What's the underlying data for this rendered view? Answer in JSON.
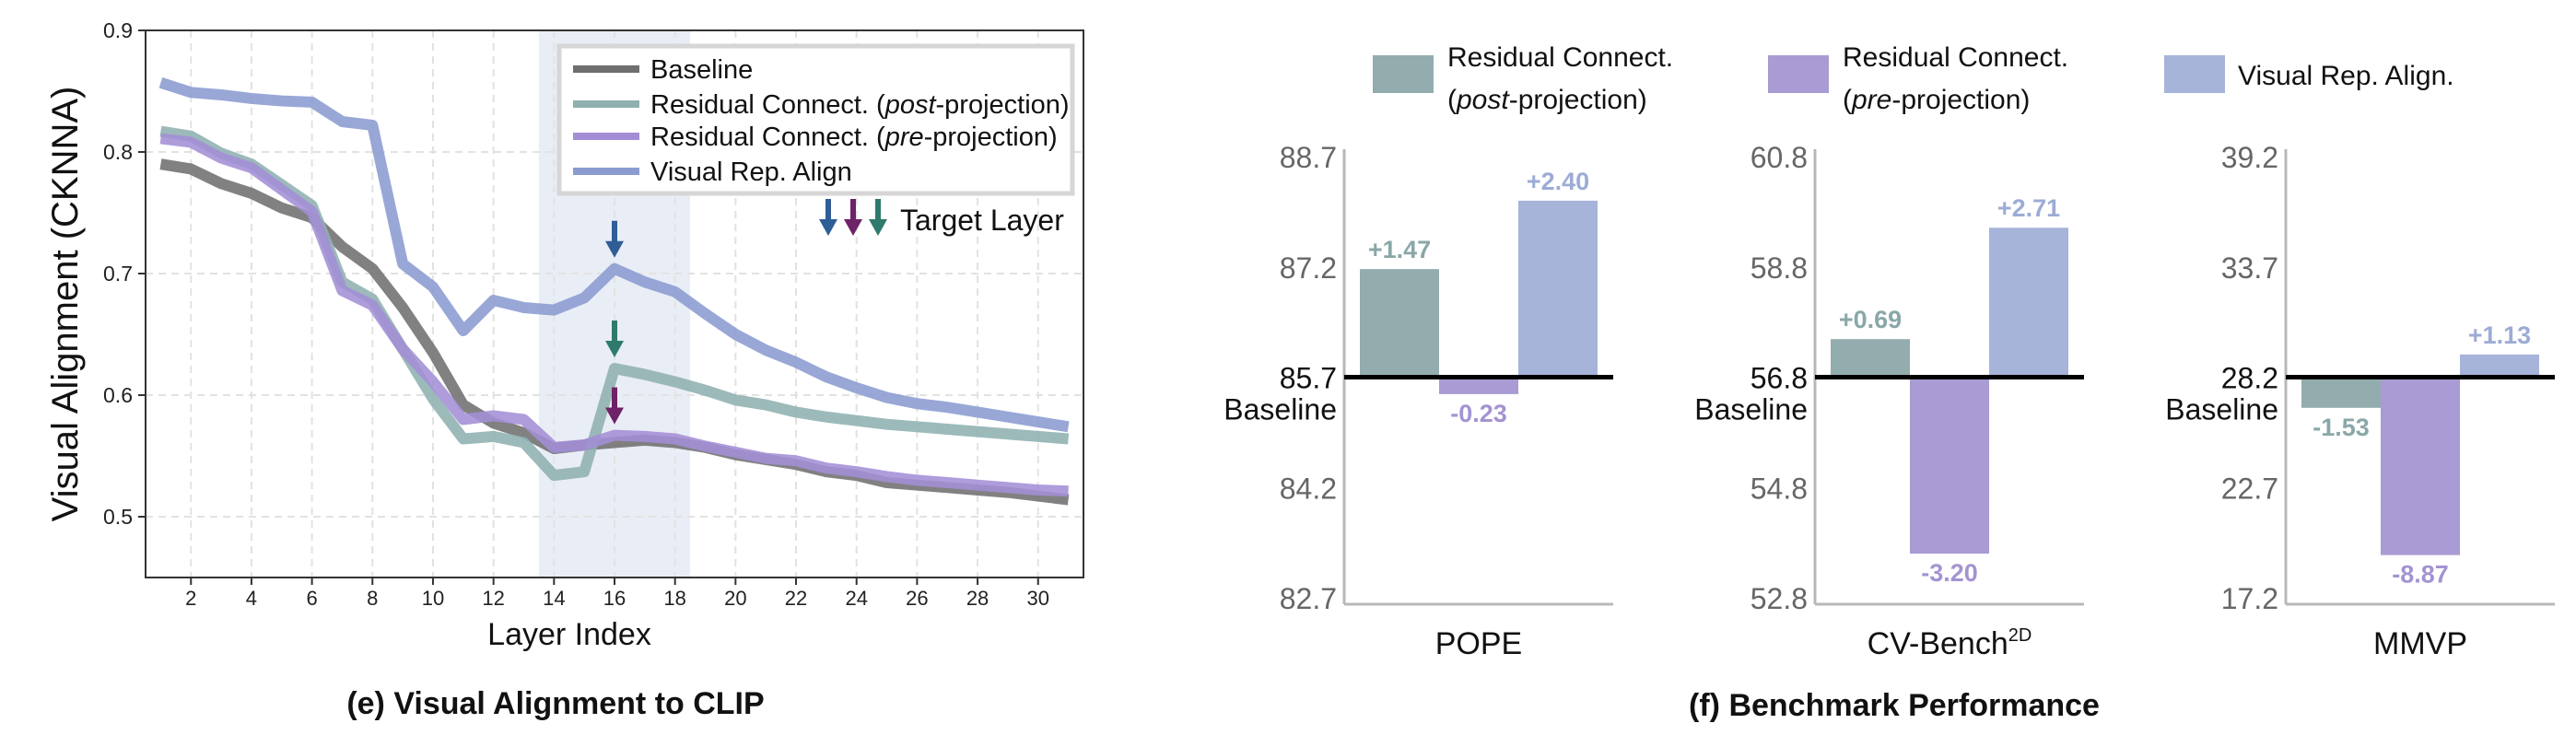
{
  "chart_data": [
    {
      "type": "line",
      "title": "(e) Visual Alignment to CLIP",
      "xlabel": "Layer Index",
      "ylabel": "Visual Alignment (CKNNA)",
      "xlim": [
        0.5,
        31.5
      ],
      "ylim": [
        0.45,
        0.9
      ],
      "xticks": [
        2,
        4,
        6,
        8,
        10,
        12,
        14,
        16,
        18,
        20,
        22,
        24,
        26,
        28,
        30
      ],
      "yticks": [
        0.5,
        0.6,
        0.7,
        0.8,
        0.9
      ],
      "ytick_labels": [
        "0.5",
        "0.6",
        "0.7",
        "0.8",
        "0.9"
      ],
      "grid": true,
      "legend_position": "top-right",
      "highlight_span": [
        13.5,
        18.5
      ],
      "x": [
        1,
        2,
        3,
        4,
        5,
        6,
        7,
        8,
        9,
        10,
        11,
        12,
        13,
        14,
        15,
        16,
        17,
        18,
        19,
        20,
        21,
        22,
        23,
        24,
        25,
        26,
        27,
        28,
        29,
        30,
        31
      ],
      "series": [
        {
          "key": "baseline",
          "name_parts": [
            "Baseline",
            "",
            ""
          ],
          "color": "#6f6f6f",
          "values": [
            0.79,
            0.786,
            0.774,
            0.766,
            0.754,
            0.746,
            0.722,
            0.704,
            0.672,
            0.635,
            0.592,
            0.577,
            0.569,
            0.556,
            0.559,
            0.561,
            0.563,
            0.561,
            0.557,
            0.551,
            0.547,
            0.543,
            0.537,
            0.534,
            0.528,
            0.526,
            0.524,
            0.522,
            0.52,
            0.517,
            0.514
          ]
        },
        {
          "key": "post",
          "name_parts": [
            "Residual Connect. (",
            "post",
            "-projection)"
          ],
          "color": "#8fb0b0",
          "values": [
            0.817,
            0.813,
            0.799,
            0.79,
            0.773,
            0.756,
            0.693,
            0.679,
            0.638,
            0.597,
            0.564,
            0.566,
            0.561,
            0.534,
            0.537,
            0.622,
            0.617,
            0.611,
            0.604,
            0.596,
            0.592,
            0.586,
            0.582,
            0.579,
            0.576,
            0.574,
            0.572,
            0.57,
            0.568,
            0.566,
            0.564
          ]
        },
        {
          "key": "pre",
          "name_parts": [
            "Residual Connect. (",
            "pre",
            "-projection)"
          ],
          "color": "#a38ed6",
          "values": [
            0.811,
            0.808,
            0.795,
            0.787,
            0.769,
            0.751,
            0.686,
            0.674,
            0.638,
            0.611,
            0.58,
            0.583,
            0.58,
            0.557,
            0.559,
            0.567,
            0.566,
            0.564,
            0.558,
            0.553,
            0.548,
            0.546,
            0.54,
            0.537,
            0.533,
            0.53,
            0.528,
            0.526,
            0.524,
            0.522,
            0.521
          ]
        },
        {
          "key": "vra",
          "name_parts": [
            "Visual Rep. Align",
            "",
            ""
          ],
          "color": "#8a9bd0",
          "values": [
            0.857,
            0.849,
            0.847,
            0.844,
            0.842,
            0.841,
            0.825,
            0.822,
            0.708,
            0.689,
            0.653,
            0.678,
            0.672,
            0.67,
            0.68,
            0.704,
            0.693,
            0.685,
            0.667,
            0.65,
            0.637,
            0.627,
            0.615,
            0.606,
            0.598,
            0.593,
            0.59,
            0.586,
            0.582,
            0.578,
            0.574
          ]
        }
      ],
      "target_layer": {
        "label": "Target Layer",
        "layer": 16,
        "arrows": [
          {
            "series": "vra",
            "color": "#2f5d96"
          },
          {
            "series": "pre",
            "color": "#6e2366"
          },
          {
            "series": "post",
            "color": "#2e7a6c"
          }
        ]
      }
    },
    {
      "type": "bar",
      "title": "(f) Benchmark Performance",
      "legend": [
        {
          "line1": "Residual Connect.",
          "line2_parts": [
            "(",
            "post",
            "-projection)"
          ],
          "color": "#93acae"
        },
        {
          "line1": "Residual Connect.",
          "line2_parts": [
            "(",
            "pre",
            "-projection)"
          ],
          "color": "#a99bd3"
        },
        {
          "line1": "Visual Rep. Align.",
          "line2_parts": [
            "",
            "",
            ""
          ],
          "color": "#a6b4d9"
        }
      ],
      "baseline_label": "Baseline",
      "value_label_colors": [
        "#8aa7a8",
        "#a493d2",
        "#9dabd6"
      ],
      "panels": [
        {
          "name": "POPE",
          "name_sup": "",
          "baseline": 85.7,
          "yticks": [
            "88.7",
            "87.2",
            "85.7",
            "84.2",
            "82.7"
          ],
          "ytick_values": [
            88.7,
            87.2,
            85.7,
            84.2,
            82.7
          ],
          "ylim": [
            82.7,
            88.7
          ],
          "deltas": [
            1.47,
            -0.23,
            2.4
          ],
          "delta_labels": [
            "+1.47",
            "-0.23",
            "+2.40"
          ]
        },
        {
          "name": "CV-Bench",
          "name_sup": "2D",
          "baseline": 56.8,
          "yticks": [
            "60.8",
            "58.8",
            "56.8",
            "54.8",
            "52.8"
          ],
          "ytick_values": [
            60.8,
            58.8,
            56.8,
            54.8,
            52.8
          ],
          "ylim": [
            52.8,
            60.8
          ],
          "deltas": [
            0.69,
            -3.2,
            2.71
          ],
          "delta_labels": [
            "+0.69",
            "-3.20",
            "+2.71"
          ]
        },
        {
          "name": "MMVP",
          "name_sup": "",
          "baseline": 28.2,
          "yticks": [
            "39.2",
            "33.7",
            "28.2",
            "22.7",
            "17.2"
          ],
          "ytick_values": [
            39.2,
            33.7,
            28.2,
            22.7,
            17.2
          ],
          "ylim": [
            17.2,
            39.2
          ],
          "deltas": [
            -1.53,
            -8.87,
            1.13
          ],
          "delta_labels": [
            "-1.53",
            "-8.87",
            "+1.13"
          ]
        }
      ]
    }
  ]
}
